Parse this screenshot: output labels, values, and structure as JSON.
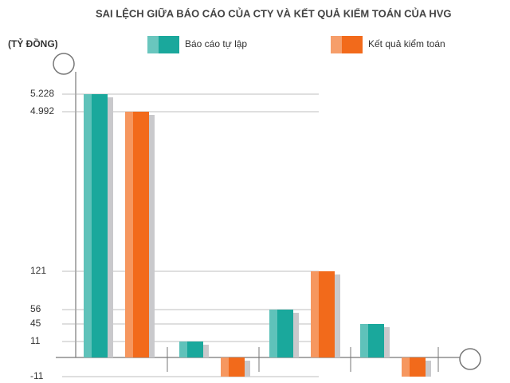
{
  "chart_data": {
    "type": "bar",
    "title": "SAI LỆCH GIỮA BÁO CÁO CỦA CTY VÀ KẾT QUẢ KIỂM TOÁN CỦA HVG",
    "y_label": "(TỶ ĐỒNG)",
    "categories": [
      null,
      null,
      null,
      null
    ],
    "series": [
      {
        "name": "Báo cáo tự lập",
        "color": "#1aa89c",
        "values": [
          5228,
          11,
          56,
          45
        ]
      },
      {
        "name": "Kết quả kiểm toán",
        "color": "#f26a1b",
        "values": [
          4992,
          -11,
          121,
          -11
        ]
      }
    ],
    "ylim": [
      -15,
      5300
    ],
    "yticks": [
      {
        "value": 5228,
        "label": "5.228"
      },
      {
        "value": 4992,
        "label": "4.992"
      },
      121,
      56,
      45,
      11,
      -11
    ],
    "grid": true
  }
}
